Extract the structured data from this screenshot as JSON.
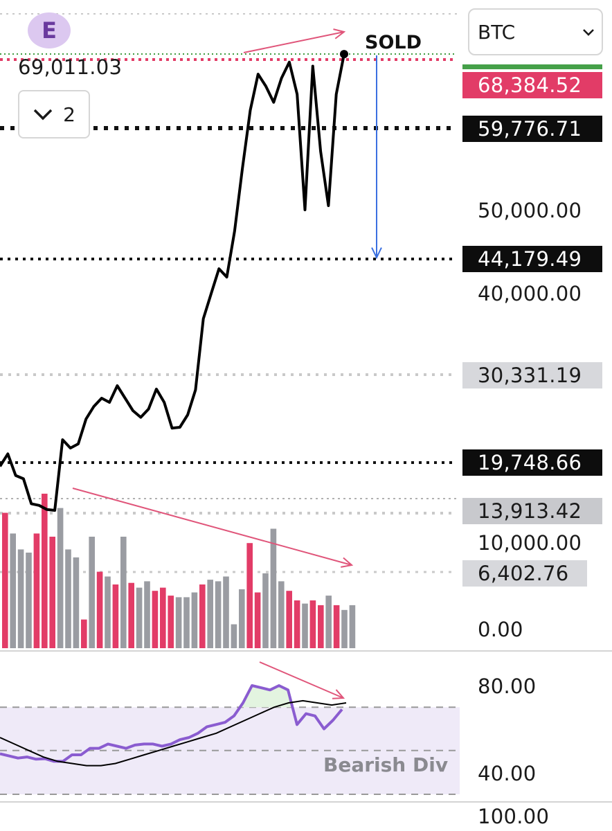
{
  "symbol_select": {
    "value": "BTC"
  },
  "badge": {
    "letter": "E"
  },
  "last_price": "69,011.03",
  "collapse_button": {
    "count": "2"
  },
  "sold_label": "SOLD",
  "bearish_div_label": "Bearish Div",
  "price_tags": [
    {
      "text": "68,384.52",
      "style": "red"
    },
    {
      "text": "59,776.71",
      "style": "black"
    },
    {
      "text": "44,179.49",
      "style": "black"
    },
    {
      "text": "30,331.19",
      "style": "grey"
    },
    {
      "text": "19,748.66",
      "style": "black"
    },
    {
      "text": "13,913.42",
      "style": "grey"
    },
    {
      "text": "6,402.76",
      "style": "grey"
    }
  ],
  "axis_labels": [
    "50,000.00",
    "40,000.00",
    "10,000.00",
    "0.00"
  ],
  "rsi_axis_labels": [
    "80.00",
    "40.00"
  ],
  "bottom_axis_label": "100.00",
  "colors": {
    "price_line": "#000000",
    "volume_up": "#e23c67",
    "volume_down": "#9a9ca2",
    "rsi_line": "#8a5cd0",
    "rsi_signal": "#000000",
    "divergence_arrow": "#e0557a",
    "sold_arrow": "#3a6fe0",
    "rsi_band": "#efeaf8",
    "overbought_fill": "#e3f4e0"
  },
  "chart_data": [
    {
      "type": "line",
      "title": "",
      "series": [
        {
          "values": [
            19300,
            20800,
            18200,
            17800,
            14800,
            14600,
            14100,
            14000,
            22500,
            21500,
            22000,
            25000,
            26500,
            27500,
            27000,
            29000,
            27500,
            26000,
            25200,
            26200,
            28600,
            27000,
            23900,
            24000,
            25500,
            28500,
            37000,
            40000,
            43000,
            42000,
            47500,
            55000,
            62000,
            66500,
            65000,
            63000,
            66000,
            68000,
            64000,
            50000,
            67500,
            57000,
            50500,
            64000,
            69000
          ]
        }
      ],
      "annotations": [
        "SOLD"
      ],
      "price_levels": [
        68384.52,
        59776.71,
        44179.49,
        30331.19,
        19748.66,
        13913.42,
        6402.76
      ]
    },
    {
      "type": "bar",
      "title": "",
      "series": [
        {
          "values": [
            0.85,
            0.72,
            0.62,
            0.6,
            0.72,
            0.97,
            0.7,
            0.88,
            0.62,
            0.57,
            0.18,
            0.7,
            0.48,
            0.45,
            0.4,
            0.7,
            0.41,
            0.38,
            0.42,
            0.36,
            0.38,
            0.33,
            0.32,
            0.32,
            0.35,
            0.4,
            0.43,
            0.42,
            0.45,
            0.15,
            0.37,
            0.66,
            0.35,
            0.47,
            0.75,
            0.42,
            0.36,
            0.3,
            0.28,
            0.3,
            0.27,
            0.33,
            0.27,
            0.24,
            0.27
          ]
        }
      ],
      "up_days": [
        true,
        false,
        false,
        false,
        true,
        true,
        true,
        false,
        false,
        false,
        true,
        false,
        true,
        false,
        true,
        false,
        true,
        false,
        false,
        true,
        true,
        true,
        false,
        false,
        false,
        true,
        false,
        false,
        false,
        false,
        false,
        true,
        true,
        false,
        false,
        false,
        true,
        true,
        false,
        true,
        true,
        false,
        true,
        false,
        false
      ]
    },
    {
      "type": "line",
      "title": "",
      "ylim": [
        30,
        90
      ],
      "series": [
        {
          "values": [
            48.5,
            47.5,
            46.5,
            47,
            46,
            46.2,
            45,
            45,
            48,
            48,
            51,
            51,
            53,
            52,
            51,
            52.5,
            53,
            53,
            52,
            53,
            55,
            56,
            58,
            61,
            62,
            63,
            66,
            72,
            80,
            79,
            78,
            80,
            78,
            62,
            67,
            66,
            60,
            64,
            69
          ]
        },
        {
          "values": [
            56,
            53,
            50,
            47,
            45,
            44,
            43,
            43,
            44,
            46,
            48,
            50,
            52,
            54,
            56,
            58,
            61,
            64,
            67,
            70,
            72,
            73,
            72,
            71,
            72
          ]
        }
      ],
      "reference_lines": [
        70,
        50,
        40
      ]
    }
  ]
}
